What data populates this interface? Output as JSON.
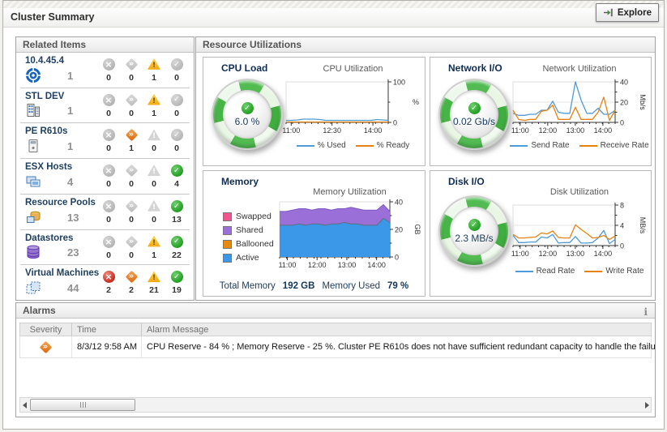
{
  "header": {
    "title": "Cluster Summary",
    "explore_label": "Explore"
  },
  "related_items": {
    "title": "Related Items",
    "status_columns": [
      "fatal",
      "critical",
      "warning",
      "normal"
    ],
    "rows": [
      {
        "name": "10.4.45.4",
        "icon": "cluster",
        "count": "1",
        "fatal": 0,
        "critical": 0,
        "warning": 1,
        "normal": 0
      },
      {
        "name": "STL DEV",
        "icon": "datacenter",
        "count": "1",
        "fatal": 0,
        "critical": 0,
        "warning": 1,
        "normal": 0
      },
      {
        "name": "PE R610s",
        "icon": "cluster-server",
        "count": "1",
        "fatal": 0,
        "critical": 1,
        "warning": 0,
        "normal": 0
      },
      {
        "name": "ESX Hosts",
        "icon": "host",
        "count": "4",
        "fatal": 0,
        "critical": 0,
        "warning": 0,
        "normal": 4
      },
      {
        "name": "Resource Pools",
        "icon": "resource-pool",
        "count": "13",
        "fatal": 0,
        "critical": 0,
        "warning": 0,
        "normal": 13
      },
      {
        "name": "Datastores",
        "icon": "datastore",
        "count": "23",
        "fatal": 0,
        "critical": 0,
        "warning": 1,
        "normal": 22
      },
      {
        "name": "Virtual Machines",
        "icon": "virtual-machine",
        "count": "44",
        "fatal": 2,
        "critical": 2,
        "warning": 21,
        "normal": 19
      }
    ]
  },
  "resource_utilizations": {
    "title": "Resource Utilizations",
    "cpu": {
      "title": "CPU Load",
      "gauge_value": "6.0 %"
    },
    "network": {
      "title": "Network I/O",
      "gauge_value": "0.02 Gb/s"
    },
    "disk": {
      "title": "Disk I/O",
      "gauge_value": "2.3 MB/s"
    },
    "memory": {
      "title": "Memory",
      "legend": [
        {
          "label": "Swapped",
          "color": "#f0558c"
        },
        {
          "label": "Shared",
          "color": "#9a70d8"
        },
        {
          "label": "Ballooned",
          "color": "#e8890c"
        },
        {
          "label": "Active",
          "color": "#3b97e8"
        }
      ],
      "total_memory_label": "Total Memory",
      "total_memory": "192 GB",
      "memory_used_label": "Memory Used",
      "memory_used": "79 %"
    }
  },
  "chart_data": [
    {
      "id": "cpu_utilization",
      "type": "line",
      "title": "CPU Utilization",
      "unit": "%",
      "unit_rotated": false,
      "ylim": [
        0,
        100
      ],
      "y_ticks": [
        0,
        100
      ],
      "y_minor": [
        50
      ],
      "x_labels": [
        "11:00",
        "12:30",
        "14:00"
      ],
      "x_positions": [
        0.05,
        0.45,
        0.85
      ],
      "series": [
        {
          "name": "% Used",
          "color": "#4f9ad8",
          "values": [
            5,
            5,
            6,
            8,
            8,
            8,
            7,
            5,
            5,
            5,
            5,
            5,
            5,
            5,
            5,
            5,
            7,
            6,
            5
          ]
        },
        {
          "name": "% Ready",
          "color": "#e8820e",
          "values": [
            1,
            1,
            1,
            1,
            1,
            1,
            1,
            1,
            1,
            1,
            1,
            1,
            1,
            1,
            1,
            1,
            1,
            1,
            1
          ]
        }
      ]
    },
    {
      "id": "network_utilization",
      "type": "line",
      "title": "Network Utilization",
      "unit": "Mb/s",
      "unit_rotated": true,
      "ylim": [
        0,
        40
      ],
      "y_ticks": [
        0,
        20,
        40
      ],
      "y_minor": [
        10,
        30
      ],
      "x_labels": [
        "11:00",
        "12:00",
        "13:00",
        "14:00"
      ],
      "x_positions": [
        0.07,
        0.34,
        0.61,
        0.88
      ],
      "series": [
        {
          "name": "Send Rate",
          "color": "#4f9ad8",
          "values": [
            9,
            7,
            7,
            8,
            8,
            12,
            12,
            21,
            10,
            9,
            9,
            40,
            22,
            9,
            9,
            14,
            8,
            8,
            12
          ]
        },
        {
          "name": "Receive Rate",
          "color": "#e8820e",
          "values": [
            12,
            3,
            2,
            3,
            3,
            11,
            12,
            17,
            3,
            3,
            3,
            15,
            3,
            3,
            3,
            10,
            25,
            2,
            12
          ]
        }
      ]
    },
    {
      "id": "memory_utilization",
      "type": "area",
      "title": "Memory Utilization",
      "unit": "GB",
      "unit_rotated": true,
      "ylim": [
        0,
        40
      ],
      "y_ticks": [
        0,
        20,
        40
      ],
      "y_minor": [
        10,
        30
      ],
      "x_labels": [
        "11:00",
        "12:00",
        "13:00",
        "14:00"
      ],
      "x_positions": [
        0.07,
        0.34,
        0.61,
        0.88
      ],
      "series": [
        {
          "name": "Active",
          "color": "#3b97e8",
          "edge": "#5f6f7d",
          "values": [
            23,
            23,
            23,
            24,
            23,
            24,
            24,
            23,
            24,
            24,
            25,
            24,
            24,
            23,
            23,
            23,
            28,
            25
          ]
        },
        {
          "name": "Shared",
          "color": "#9a70d8",
          "edge": "#7e57c2",
          "values": [
            10,
            10,
            11,
            11,
            12,
            10,
            11,
            12,
            10,
            11,
            10,
            12,
            11,
            11,
            11,
            11,
            10,
            8
          ]
        }
      ]
    },
    {
      "id": "disk_utilization",
      "type": "line",
      "title": "Disk Utilization",
      "unit": "MB/s",
      "unit_rotated": true,
      "ylim": [
        0,
        8
      ],
      "y_ticks": [
        0,
        4,
        8
      ],
      "y_minor": [
        2,
        6
      ],
      "x_labels": [
        "11:00",
        "12:00",
        "13:00",
        "14:00"
      ],
      "x_positions": [
        0.07,
        0.34,
        0.61,
        0.88
      ],
      "series": [
        {
          "name": "Read Rate",
          "color": "#4f9ad8",
          "values": [
            2.0,
            0.6,
            0.6,
            0.7,
            0.7,
            1.7,
            1.5,
            2.2,
            0.5,
            0.6,
            0.6,
            1.8,
            0.5,
            0.5,
            0.6,
            1.5,
            3.0,
            0.4,
            1.2
          ]
        },
        {
          "name": "Write Rate",
          "color": "#e8820e",
          "values": [
            2.2,
            1.5,
            1.5,
            1.6,
            1.7,
            2.5,
            2.3,
            2.9,
            1.6,
            1.5,
            1.5,
            4.1,
            3.2,
            2.4,
            1.5,
            1.6,
            2.0,
            1.2,
            1.9
          ]
        }
      ]
    }
  ],
  "alarms": {
    "title": "Alarms",
    "info_icon": "i",
    "columns": [
      "Severity",
      "Time",
      "Alarm Message"
    ],
    "rows": [
      {
        "severity": "critical",
        "time": "8/3/12 9:58 AM",
        "message": "CPU Reserve - 84 % ; Memory Reserve - 25 %. Cluster PE R610s does not have sufficient redundant capacity to handle the failu"
      }
    ]
  }
}
